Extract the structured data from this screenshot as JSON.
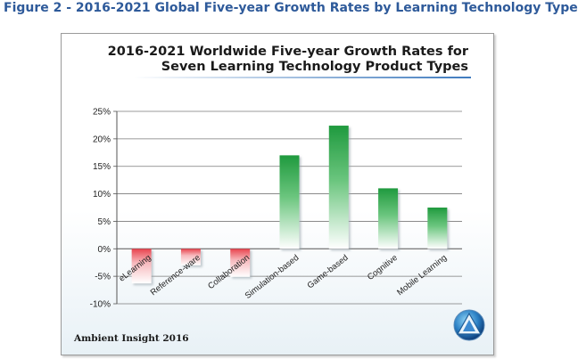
{
  "caption": "Figure 2 - 2016-2021 Global Five-year Growth Rates by Learning Technology Type",
  "footer": "Ambient Insight 2016",
  "colors": {
    "positive": "#2ea24a",
    "negative": "#e8434d",
    "caption": "#2e5a9a"
  },
  "logo_icon": "ambient-insight-triangle-logo",
  "chart_data": {
    "type": "bar",
    "title_lines": [
      "2016-2021 Worldwide Five-year Growth Rates for",
      "Seven Learning Technology Product Types"
    ],
    "categories": [
      "eLearning",
      "Reference-ware",
      "Collaboration",
      "Simulation-based",
      "Game-based",
      "Cognitive",
      "Mobile Learning"
    ],
    "values": [
      -6.3,
      -3.0,
      -5.1,
      17.0,
      22.4,
      11.0,
      7.5
    ],
    "unit": "%",
    "ylim": [
      -10,
      25
    ],
    "yticks": [
      25,
      20,
      15,
      10,
      5,
      0,
      -5,
      -10
    ],
    "ytick_labels": [
      "25%",
      "20%",
      "15%",
      "10%",
      "5%",
      "0%",
      "-5%",
      "-10%"
    ],
    "xlabel": "",
    "ylabel": "",
    "grid": true
  }
}
